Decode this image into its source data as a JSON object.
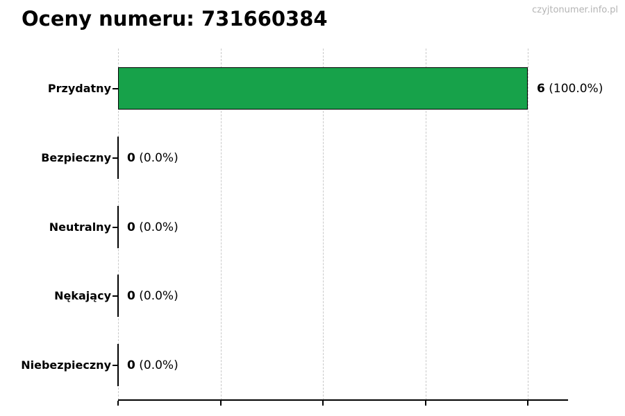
{
  "title": "Oceny numeru: 731660384",
  "watermark": "czyjtonumer.info.pl",
  "chart_data": {
    "type": "bar",
    "orientation": "horizontal",
    "title": "Oceny numeru: 731660384",
    "categories": [
      "Przydatny",
      "Bezpieczny",
      "Neutralny",
      "Nękający",
      "Niebezpieczny"
    ],
    "values": [
      6,
      0,
      0,
      0,
      0
    ],
    "percent_labels": [
      "100.0%",
      "0.0%",
      "0.0%",
      "0.0%",
      "0.0%"
    ],
    "value_label_format": "count (percent)",
    "xlim": [
      0,
      6.6
    ],
    "x_gridline_values": [
      0,
      1.5,
      3,
      4.5,
      6
    ],
    "x_tick_labels_visible": false,
    "grid": true,
    "legend": "none",
    "colors": {
      "bar_fill": "#17a24a",
      "bar_border": "#000000",
      "zero_bar_line": "#000000",
      "grid": "#c9c9c9",
      "axis": "#000000",
      "title_text": "#000000",
      "watermark_text": "#b4b4b4"
    }
  }
}
